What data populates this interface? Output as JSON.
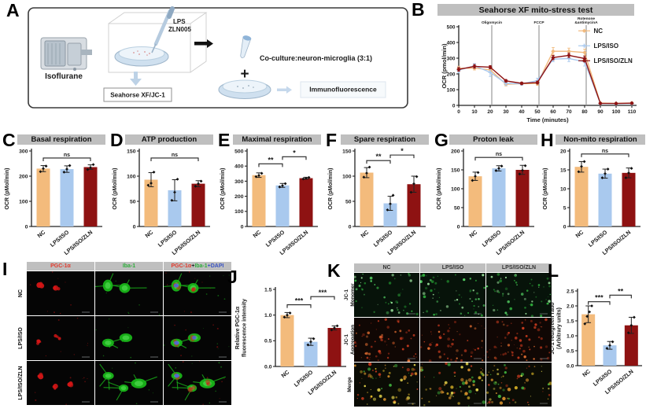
{
  "colors": {
    "series": [
      "#F3BB7C",
      "#A9C9EE",
      "#8E1212"
    ],
    "title_band": "#BFBFBF"
  },
  "fluorescence": {
    "red": "#d31616",
    "green": "#19b519",
    "blue": "#4f66e0",
    "monomer_palette": [
      "#2fae3c",
      "#57d967",
      "#1d7a28",
      "#9fe8a0"
    ],
    "aggregation_palette": [
      "#c43a1e",
      "#a8321a",
      "#d96a30",
      "#8a2713"
    ],
    "merge_palette": [
      "#d8b327",
      "#cf8b2a",
      "#3fae3c",
      "#c43a1e",
      "#e0d04a"
    ]
  },
  "panelA": {
    "letter": "A",
    "isoflurane_label": "Isoflurane",
    "pipette_label_1": "LPS",
    "pipette_label_2": "ZLN005",
    "seahorse_box": "Seahorse XF/JC-1",
    "coculture_label": "Co-culture:neuron-microglia (3:1)",
    "plus": "+",
    "immuno_box": "Immunofluorescence"
  },
  "panelI": {
    "letter": "I",
    "columns": [
      [
        {
          "t": "PGC-1α",
          "c": "#e23b2e"
        }
      ],
      [
        {
          "t": "Iba-1",
          "c": "#2fae3c"
        }
      ],
      [
        {
          "t": "PGC-1α",
          "c": "#e23b2e"
        },
        {
          "t": "+",
          "c": "#222222"
        },
        {
          "t": "Iba-1",
          "c": "#2fae3c"
        },
        {
          "t": "+DAPI",
          "c": "#3b55c4"
        }
      ]
    ],
    "rows": [
      "NC",
      "LPS/ISO",
      "LPS/ISO/ZLN"
    ]
  },
  "panelK": {
    "letter": "K",
    "columns": [
      "NC",
      "LPS/ISO",
      "LPS/ISO/ZLN"
    ],
    "rows": [
      [
        "JC-1",
        "Monomer"
      ],
      [
        "JC-1",
        "Aggregation"
      ],
      [
        "Merge"
      ]
    ]
  },
  "chart_data": [
    {
      "id": "B",
      "panel_letter": "B",
      "type": "line",
      "title": "Seahorse XF mito-stress test",
      "xlabel": "Time (minutes)",
      "ylabel": "OCR (pmol/min)",
      "xlim": [
        0,
        113
      ],
      "ylim": [
        0,
        500
      ],
      "xticks": [
        0,
        10,
        20,
        30,
        40,
        50,
        60,
        70,
        80,
        90,
        100,
        110
      ],
      "yticks": [
        0,
        100,
        200,
        300,
        400,
        500
      ],
      "x": [
        0,
        10,
        20,
        30,
        40,
        50,
        60,
        70,
        80,
        90,
        100,
        110
      ],
      "series": [
        {
          "name": "NC",
          "color": "#F1B97C",
          "marker": "diamond",
          "values": [
            235,
            237,
            226,
            134,
            138,
            139,
            344,
            344,
            336,
            15,
            13,
            15
          ],
          "errors": [
            14,
            12,
            14,
            10,
            8,
            12,
            24,
            20,
            22,
            5,
            4,
            6
          ]
        },
        {
          "name": "LPS/ISO",
          "color": "#A9C9EE",
          "marker": "plus",
          "values": [
            224,
            252,
            210,
            140,
            137,
            157,
            294,
            298,
            278,
            12,
            11,
            12
          ],
          "errors": [
            18,
            14,
            26,
            12,
            9,
            16,
            16,
            20,
            28,
            4,
            4,
            4
          ]
        },
        {
          "name": "LPS/ISO/ZLN",
          "color": "#8E1212",
          "marker": "diamond",
          "values": [
            229,
            248,
            243,
            156,
            140,
            145,
            304,
            318,
            298,
            13,
            12,
            14
          ],
          "errors": [
            12,
            12,
            10,
            8,
            7,
            9,
            14,
            14,
            16,
            4,
            4,
            5
          ]
        }
      ],
      "vlines": [
        {
          "x": 21,
          "label": [
            "Oligomycin"
          ]
        },
        {
          "x": 51,
          "label": [
            "FCCP"
          ]
        },
        {
          "x": 81,
          "label": [
            "Rotenone",
            "&antimycinA"
          ]
        }
      ]
    },
    {
      "id": "C",
      "panel_letter": "C",
      "type": "bar",
      "title": "Basal respiration",
      "ylabel": "OCR (pMol/min)",
      "ylim": [
        0,
        300
      ],
      "yticks": [
        0,
        100,
        200,
        300
      ],
      "ydecimals": 0,
      "categories": [
        "NC",
        "LPS/ISO",
        "LPS/ISO/ZLN"
      ],
      "values": [
        230,
        228,
        236
      ],
      "errors": [
        12,
        13,
        9
      ],
      "points": [
        [
          218,
          230,
          240
        ],
        [
          216,
          228,
          242
        ],
        [
          226,
          234,
          246
        ]
      ],
      "sig": [
        {
          "from": 0,
          "to": 2,
          "label": "ns",
          "y": 272
        }
      ]
    },
    {
      "id": "D",
      "panel_letter": "D",
      "type": "bar",
      "title": "ATP production",
      "ylabel": "OCR (pMol/min)",
      "ylim": [
        0,
        150
      ],
      "yticks": [
        0,
        50,
        100,
        150
      ],
      "ydecimals": 0,
      "categories": [
        "NC",
        "LPS/ISO",
        "LPS/ISO/ZLN"
      ],
      "values": [
        93,
        72,
        85
      ],
      "errors": [
        14,
        21,
        6
      ],
      "points": [
        [
          82,
          86,
          108
        ],
        [
          52,
          68,
          94
        ],
        [
          80,
          85,
          90
        ]
      ],
      "sig": [
        {
          "from": 0,
          "to": 2,
          "label": "ns",
          "y": 136
        }
      ]
    },
    {
      "id": "E",
      "panel_letter": "E",
      "type": "bar",
      "title": "Maximal respiration",
      "ylabel": "OCR (pMol/min)",
      "ylim": [
        0,
        500
      ],
      "yticks": [
        0,
        100,
        200,
        300,
        400,
        500
      ],
      "ydecimals": 0,
      "categories": [
        "NC",
        "LPS/ISO",
        "LPS/ISO/ZLN"
      ],
      "values": [
        340,
        272,
        320
      ],
      "errors": [
        15,
        13,
        6
      ],
      "points": [
        [
          330,
          338,
          352
        ],
        [
          262,
          270,
          284
        ],
        [
          315,
          319,
          325
        ]
      ],
      "sig": [
        {
          "from": 0,
          "to": 1,
          "label": "**",
          "y": 415
        },
        {
          "from": 1,
          "to": 2,
          "label": "*",
          "y": 462
        }
      ]
    },
    {
      "id": "F",
      "panel_letter": "F",
      "type": "bar",
      "title": "Spare respiration",
      "ylabel": "OCR (pMol/min)",
      "ylim": [
        0,
        150
      ],
      "yticks": [
        0,
        50,
        100,
        150
      ],
      "ydecimals": 0,
      "categories": [
        "NC",
        "LPS/ISO",
        "LPS/ISO/ZLN"
      ],
      "values": [
        107,
        46,
        84
      ],
      "errors": [
        10,
        14,
        16
      ],
      "points": [
        [
          98,
          106,
          118
        ],
        [
          33,
          45,
          62
        ],
        [
          68,
          85,
          99
        ]
      ],
      "sig": [
        {
          "from": 0,
          "to": 1,
          "label": "**",
          "y": 131
        },
        {
          "from": 1,
          "to": 2,
          "label": "*",
          "y": 142
        }
      ]
    },
    {
      "id": "G",
      "panel_letter": "G",
      "type": "bar",
      "title": "Proton leak",
      "ylabel": "OCR (pMol/min)",
      "ylim": [
        0,
        200
      ],
      "yticks": [
        0,
        50,
        100,
        150,
        200
      ],
      "ydecimals": 0,
      "categories": [
        "NC",
        "LPS/ISO",
        "LPS/ISO/ZLN"
      ],
      "values": [
        133,
        154,
        150
      ],
      "errors": [
        11,
        7,
        12
      ],
      "points": [
        [
          122,
          133,
          143
        ],
        [
          148,
          154,
          160
        ],
        [
          139,
          149,
          161
        ]
      ],
      "sig": [
        {
          "from": 0,
          "to": 2,
          "label": "ns",
          "y": 183
        }
      ]
    },
    {
      "id": "H",
      "panel_letter": "H",
      "type": "bar",
      "title": "Non-mito respiration",
      "ylabel": "OCR (pMol/min)",
      "ylim": [
        0,
        20
      ],
      "yticks": [
        0,
        5,
        10,
        15,
        20
      ],
      "ydecimals": 0,
      "categories": [
        "NC",
        "LPS/ISO",
        "LPS/ISO/ZLN"
      ],
      "values": [
        15.8,
        14.0,
        14.2
      ],
      "errors": [
        1.4,
        1.2,
        1.3
      ],
      "points": [
        [
          14.5,
          15.9,
          17.2
        ],
        [
          12.9,
          14.0,
          15.2
        ],
        [
          12.9,
          14.2,
          15.4
        ]
      ],
      "sig": [
        {
          "from": 0,
          "to": 2,
          "label": "ns",
          "y": 19.2
        }
      ]
    },
    {
      "id": "J",
      "panel_letter": "J",
      "type": "bar",
      "title": "",
      "ylabel": [
        "Relative PGC-1α",
        "fluorescence intensity"
      ],
      "ylim": [
        0,
        1.5
      ],
      "yticks": [
        0,
        0.5,
        1,
        1.5
      ],
      "ydecimals": 1,
      "categories": [
        "NC",
        "LPS/ISO",
        "LPS/ISO/ZLN"
      ],
      "values": [
        1.0,
        0.48,
        0.75
      ],
      "errors": [
        0.05,
        0.07,
        0.04
      ],
      "points": [
        [
          0.96,
          1.0,
          1.04
        ],
        [
          0.42,
          0.48,
          0.54
        ],
        [
          0.71,
          0.75,
          0.79
        ]
      ],
      "sig": [
        {
          "from": 0,
          "to": 1,
          "label": "***",
          "y": 1.2
        },
        {
          "from": 1,
          "to": 2,
          "label": "***",
          "y": 1.36
        }
      ]
    },
    {
      "id": "L",
      "panel_letter": "L",
      "type": "bar",
      "title": "",
      "ylabel": [
        "JC-1 red/green ratio",
        "(Arbitrary units)"
      ],
      "ylim": [
        0,
        2.5
      ],
      "yticks": [
        0,
        0.5,
        1,
        1.5,
        2,
        2.5
      ],
      "ydecimals": 1,
      "categories": [
        "NC",
        "LPS/ISO",
        "LPS/ISO/ZLN"
      ],
      "values": [
        1.72,
        0.68,
        1.35
      ],
      "errors": [
        0.28,
        0.13,
        0.27
      ],
      "points": [
        [
          1.4,
          1.65,
          1.8,
          2.0
        ],
        [
          0.58,
          0.68,
          0.8
        ],
        [
          1.1,
          1.35,
          1.62
        ]
      ],
      "sig": [
        {
          "from": 0,
          "to": 1,
          "label": "***",
          "y": 2.14
        },
        {
          "from": 1,
          "to": 2,
          "label": "**",
          "y": 2.36
        }
      ]
    }
  ]
}
